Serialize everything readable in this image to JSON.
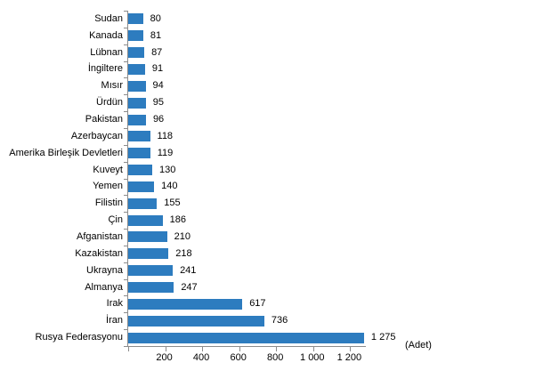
{
  "chart_data": {
    "type": "bar",
    "orientation": "horizontal",
    "title": "",
    "unit_label": "(Adet)",
    "categories": [
      "Sudan",
      "Kanada",
      "Lübnan",
      "İngiltere",
      "Mısır",
      "Ürdün",
      "Pakistan",
      "Azerbaycan",
      "Amerika Birleşik Devletleri",
      "Kuveyt",
      "Yemen",
      "Filistin",
      "Çin",
      "Afganistan",
      "Kazakistan",
      "Ukrayna",
      "Almanya",
      "Irak",
      "İran",
      "Rusya Federasyonu"
    ],
    "values": [
      80,
      81,
      87,
      91,
      94,
      95,
      96,
      118,
      119,
      130,
      140,
      155,
      186,
      210,
      218,
      241,
      247,
      617,
      736,
      1275
    ],
    "value_labels": [
      "80",
      "81",
      "87",
      "91",
      "94",
      "95",
      "96",
      "118",
      "119",
      "130",
      "140",
      "155",
      "186",
      "210",
      "218",
      "241",
      "247",
      "617",
      "736",
      "1 275"
    ],
    "x_ticks": [
      {
        "value": 0,
        "label": ""
      },
      {
        "value": 200,
        "label": "200"
      },
      {
        "value": 400,
        "label": "400"
      },
      {
        "value": 600,
        "label": "600"
      },
      {
        "value": 800,
        "label": "800"
      },
      {
        "value": 1000,
        "label": "1 000"
      },
      {
        "value": 1200,
        "label": "1 200"
      }
    ],
    "xlim": [
      0,
      1285
    ],
    "grid": false,
    "legend": "none",
    "bar_color": "#2d7cbf",
    "axis_color": "#8c8c8c",
    "text_color": "#000000"
  }
}
